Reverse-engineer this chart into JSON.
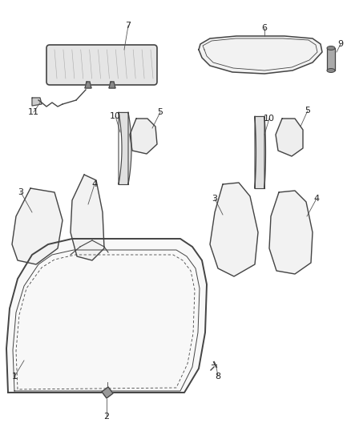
{
  "bg_color": "#ffffff",
  "line_color": "#444444",
  "fig_width": 4.38,
  "fig_height": 5.33,
  "dpi": 100
}
